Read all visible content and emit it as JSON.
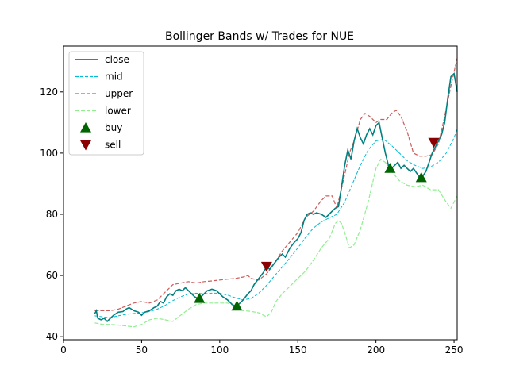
{
  "chart_data": {
    "type": "line",
    "title": "Bollinger Bands w/ Trades for NUE",
    "xlabel": "",
    "ylabel": "",
    "xlim": [
      0,
      252
    ],
    "ylim": [
      39,
      135
    ],
    "x_ticks": [
      0,
      50,
      100,
      150,
      200,
      250
    ],
    "y_ticks": [
      40,
      60,
      80,
      100,
      120
    ],
    "grid": false,
    "legend_position": "upper-left",
    "colors": {
      "close": "#008080",
      "mid": "#00bcd4",
      "upper": "#cd5c5c",
      "lower": "#90ee90",
      "buy": "#006400",
      "sell": "#8b0000"
    },
    "legend": [
      {
        "key": "close",
        "label": "close",
        "style": "solid"
      },
      {
        "key": "mid",
        "label": "mid",
        "style": "dashed"
      },
      {
        "key": "upper",
        "label": "upper",
        "style": "dashed"
      },
      {
        "key": "lower",
        "label": "lower",
        "style": "dashed"
      },
      {
        "key": "buy",
        "label": "buy",
        "style": "marker-up"
      },
      {
        "key": "sell",
        "label": "sell",
        "style": "marker-down"
      }
    ],
    "series": [
      {
        "name": "close",
        "points": [
          [
            20,
            47.5
          ],
          [
            21,
            48.5
          ],
          [
            22,
            46
          ],
          [
            24,
            45.5
          ],
          [
            26,
            46
          ],
          [
            28,
            45
          ],
          [
            30,
            46
          ],
          [
            32,
            47
          ],
          [
            35,
            48
          ],
          [
            38,
            48.2
          ],
          [
            40,
            49
          ],
          [
            42,
            49.5
          ],
          [
            45,
            48.5
          ],
          [
            48,
            48
          ],
          [
            50,
            47
          ],
          [
            52,
            48
          ],
          [
            55,
            48.5
          ],
          [
            58,
            49.5
          ],
          [
            60,
            50
          ],
          [
            62,
            51.5
          ],
          [
            64,
            51
          ],
          [
            66,
            53
          ],
          [
            68,
            54
          ],
          [
            70,
            53.5
          ],
          [
            72,
            55
          ],
          [
            74,
            55.5
          ],
          [
            76,
            55
          ],
          [
            78,
            56
          ],
          [
            80,
            55
          ],
          [
            82,
            54
          ],
          [
            84,
            53
          ],
          [
            86,
            52.5
          ],
          [
            88,
            53
          ],
          [
            90,
            54
          ],
          [
            92,
            55
          ],
          [
            95,
            55.5
          ],
          [
            98,
            55
          ],
          [
            100,
            54
          ],
          [
            102,
            53
          ],
          [
            105,
            52
          ],
          [
            108,
            50.5
          ],
          [
            110,
            50
          ],
          [
            112,
            50.5
          ],
          [
            115,
            52
          ],
          [
            118,
            54
          ],
          [
            120,
            55
          ],
          [
            122,
            57
          ],
          [
            125,
            59
          ],
          [
            128,
            61
          ],
          [
            130,
            63
          ],
          [
            132,
            62
          ],
          [
            135,
            64
          ],
          [
            138,
            66
          ],
          [
            140,
            67
          ],
          [
            142,
            66
          ],
          [
            145,
            69
          ],
          [
            148,
            71
          ],
          [
            150,
            72
          ],
          [
            152,
            74
          ],
          [
            154,
            78
          ],
          [
            156,
            80
          ],
          [
            158,
            80.5
          ],
          [
            160,
            80
          ],
          [
            162,
            80.5
          ],
          [
            165,
            80
          ],
          [
            168,
            79
          ],
          [
            170,
            80
          ],
          [
            172,
            81
          ],
          [
            174,
            82
          ],
          [
            176,
            82.5
          ],
          [
            178,
            89
          ],
          [
            180,
            96
          ],
          [
            182,
            101
          ],
          [
            184,
            98
          ],
          [
            186,
            104
          ],
          [
            188,
            108
          ],
          [
            190,
            105
          ],
          [
            192,
            103
          ],
          [
            194,
            106
          ],
          [
            196,
            108
          ],
          [
            198,
            106
          ],
          [
            200,
            109
          ],
          [
            202,
            110
          ],
          [
            204,
            105
          ],
          [
            206,
            100
          ],
          [
            208,
            96
          ],
          [
            210,
            95
          ],
          [
            212,
            96
          ],
          [
            214,
            97
          ],
          [
            216,
            95
          ],
          [
            218,
            96
          ],
          [
            220,
            95
          ],
          [
            222,
            94
          ],
          [
            224,
            95
          ],
          [
            226,
            93.5
          ],
          [
            228,
            92
          ],
          [
            230,
            92.5
          ],
          [
            232,
            94
          ],
          [
            234,
            97
          ],
          [
            236,
            100
          ],
          [
            238,
            102
          ],
          [
            240,
            104
          ],
          [
            242,
            106
          ],
          [
            244,
            110
          ],
          [
            246,
            118
          ],
          [
            248,
            125
          ],
          [
            250,
            126
          ],
          [
            252,
            120
          ]
        ]
      },
      {
        "name": "mid",
        "points": [
          [
            20,
            46.8
          ],
          [
            25,
            46.5
          ],
          [
            30,
            46.2
          ],
          [
            35,
            46.8
          ],
          [
            40,
            47.3
          ],
          [
            45,
            47.6
          ],
          [
            50,
            47.8
          ],
          [
            55,
            48.2
          ],
          [
            60,
            49
          ],
          [
            65,
            50.2
          ],
          [
            70,
            51.8
          ],
          [
            75,
            53
          ],
          [
            80,
            54
          ],
          [
            85,
            54.2
          ],
          [
            90,
            54
          ],
          [
            95,
            54.2
          ],
          [
            100,
            54.2
          ],
          [
            105,
            53.6
          ],
          [
            110,
            52.7
          ],
          [
            115,
            52
          ],
          [
            120,
            52.5
          ],
          [
            125,
            54.2
          ],
          [
            130,
            56.8
          ],
          [
            135,
            59.8
          ],
          [
            140,
            62.8
          ],
          [
            145,
            65.8
          ],
          [
            150,
            69
          ],
          [
            155,
            72.5
          ],
          [
            160,
            75.5
          ],
          [
            165,
            77.5
          ],
          [
            170,
            78.8
          ],
          [
            175,
            80
          ],
          [
            180,
            84
          ],
          [
            185,
            90
          ],
          [
            190,
            96
          ],
          [
            195,
            101
          ],
          [
            200,
            104
          ],
          [
            205,
            104.5
          ],
          [
            210,
            102.5
          ],
          [
            215,
            100
          ],
          [
            220,
            97.5
          ],
          [
            225,
            96
          ],
          [
            230,
            95
          ],
          [
            235,
            95.5
          ],
          [
            240,
            97
          ],
          [
            245,
            100
          ],
          [
            250,
            105
          ],
          [
            252,
            108
          ]
        ]
      },
      {
        "name": "upper",
        "points": [
          [
            20,
            48.5
          ],
          [
            25,
            48.5
          ],
          [
            30,
            48.5
          ],
          [
            35,
            49
          ],
          [
            40,
            50
          ],
          [
            45,
            51
          ],
          [
            50,
            51.5
          ],
          [
            55,
            51
          ],
          [
            60,
            52
          ],
          [
            65,
            54.5
          ],
          [
            70,
            57
          ],
          [
            75,
            57.5
          ],
          [
            80,
            58
          ],
          [
            85,
            57.5
          ],
          [
            90,
            58
          ],
          [
            95,
            58.2
          ],
          [
            100,
            58.5
          ],
          [
            105,
            58.8
          ],
          [
            110,
            59
          ],
          [
            115,
            59.5
          ],
          [
            118,
            60
          ],
          [
            120,
            59
          ],
          [
            125,
            58.5
          ],
          [
            130,
            60.5
          ],
          [
            135,
            64
          ],
          [
            140,
            68
          ],
          [
            145,
            71
          ],
          [
            150,
            74
          ],
          [
            155,
            79
          ],
          [
            160,
            81
          ],
          [
            165,
            84.5
          ],
          [
            168,
            86
          ],
          [
            172,
            86
          ],
          [
            175,
            82
          ],
          [
            180,
            93
          ],
          [
            183,
            100
          ],
          [
            186,
            104
          ],
          [
            190,
            111
          ],
          [
            193,
            113
          ],
          [
            196,
            112
          ],
          [
            200,
            110
          ],
          [
            203,
            111
          ],
          [
            207,
            111
          ],
          [
            210,
            113
          ],
          [
            213,
            114
          ],
          [
            216,
            112
          ],
          [
            220,
            107
          ],
          [
            224,
            100
          ],
          [
            228,
            99
          ],
          [
            232,
            99
          ],
          [
            236,
            99.5
          ],
          [
            240,
            103
          ],
          [
            244,
            112
          ],
          [
            248,
            122
          ],
          [
            252,
            131
          ]
        ]
      },
      {
        "name": "lower",
        "points": [
          [
            20,
            44.5
          ],
          [
            25,
            44
          ],
          [
            30,
            44
          ],
          [
            35,
            43.8
          ],
          [
            40,
            43.5
          ],
          [
            45,
            43.2
          ],
          [
            50,
            44
          ],
          [
            55,
            45.5
          ],
          [
            60,
            46
          ],
          [
            65,
            45.5
          ],
          [
            70,
            45
          ],
          [
            75,
            47
          ],
          [
            80,
            49
          ],
          [
            85,
            50.5
          ],
          [
            90,
            51
          ],
          [
            95,
            51
          ],
          [
            100,
            51
          ],
          [
            105,
            51
          ],
          [
            110,
            50
          ],
          [
            115,
            48.5
          ],
          [
            120,
            48.3
          ],
          [
            125,
            47.8
          ],
          [
            130,
            46.5
          ],
          [
            133,
            48
          ],
          [
            136,
            51.5
          ],
          [
            140,
            54
          ],
          [
            145,
            56.5
          ],
          [
            150,
            59
          ],
          [
            155,
            61.5
          ],
          [
            160,
            65
          ],
          [
            165,
            69
          ],
          [
            170,
            72
          ],
          [
            174,
            77
          ],
          [
            176,
            78
          ],
          [
            178,
            77
          ],
          [
            180,
            74
          ],
          [
            183,
            69
          ],
          [
            186,
            70
          ],
          [
            190,
            75
          ],
          [
            195,
            84
          ],
          [
            200,
            95
          ],
          [
            203,
            98
          ],
          [
            206,
            97
          ],
          [
            210,
            94
          ],
          [
            215,
            91
          ],
          [
            220,
            89.5
          ],
          [
            225,
            89
          ],
          [
            230,
            89.5
          ],
          [
            235,
            88
          ],
          [
            240,
            88
          ],
          [
            245,
            84
          ],
          [
            248,
            82
          ],
          [
            252,
            86
          ]
        ]
      }
    ],
    "buy_points": [
      [
        87,
        52.5
      ],
      [
        111,
        50
      ],
      [
        209,
        95
      ],
      [
        229,
        92
      ]
    ],
    "sell_points": [
      [
        130,
        63
      ],
      [
        237,
        103.5
      ]
    ]
  }
}
